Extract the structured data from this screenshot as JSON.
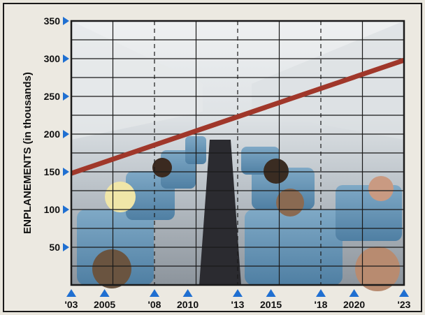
{
  "chart_data": {
    "type": "line",
    "ylabel": "ENPLANEMENTS (in thousands)",
    "xlabel": "",
    "title": "",
    "x_ticks": [
      "'03",
      "2005",
      "'08",
      "2010",
      "'13",
      "2015",
      "'18",
      "2020",
      "'23"
    ],
    "x_tick_years": [
      2003,
      2005,
      2008,
      2010,
      2013,
      2015,
      2018,
      2020,
      2023
    ],
    "dashed_years": [
      2008,
      2013,
      2018
    ],
    "y_ticks": [
      50,
      100,
      150,
      200,
      250,
      300,
      350
    ],
    "xlim": [
      2003,
      2023
    ],
    "ylim": [
      0,
      350
    ],
    "grid": true,
    "series": [
      {
        "x": [
          2003,
          2023
        ],
        "y": [
          148,
          298
        ]
      }
    ],
    "colors": {
      "line": "#a0372a",
      "grid": "#1a1a1a",
      "marker": "#1f6fd1",
      "frame": "#1a1a1a"
    },
    "background": "airplane cabin photo"
  }
}
